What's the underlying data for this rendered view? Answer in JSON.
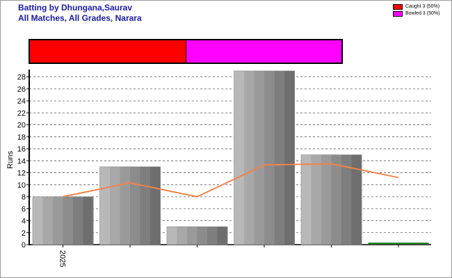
{
  "title": {
    "line1": "Batting by Dhungana,Saurav",
    "line2": "All Matches, All Grades, Narara"
  },
  "legend": [
    {
      "label": "Caught 3 (50%)",
      "color": "#ff0000",
      "value": 3,
      "percent": 50
    },
    {
      "label": "Bowled 3 (50%)",
      "color": "#ff00ff",
      "value": 3,
      "percent": 50
    }
  ],
  "chart_data": {
    "type": "bar",
    "categories": [
      "2025",
      "",
      "",
      "",
      "",
      ""
    ],
    "values": [
      8,
      13,
      3,
      29,
      15,
      0
    ],
    "line_values": [
      8,
      10.3,
      8,
      13.3,
      13.5,
      11.2
    ],
    "ylabel": "Runs",
    "xlabel": "",
    "ylim": [
      0,
      29
    ],
    "yticks": [
      0,
      2,
      4,
      6,
      8,
      10,
      12,
      14,
      16,
      18,
      20,
      22,
      24,
      26,
      28
    ],
    "grid": true,
    "bar_colors": [
      "#b8b8b8",
      "#a8a8a8",
      "#9a9a9a",
      "#8c8c8c",
      "#7e7e7e",
      "#6e6e6e"
    ],
    "line_color": "#f0844a",
    "zero_bar_color": "#1e8f1e"
  }
}
